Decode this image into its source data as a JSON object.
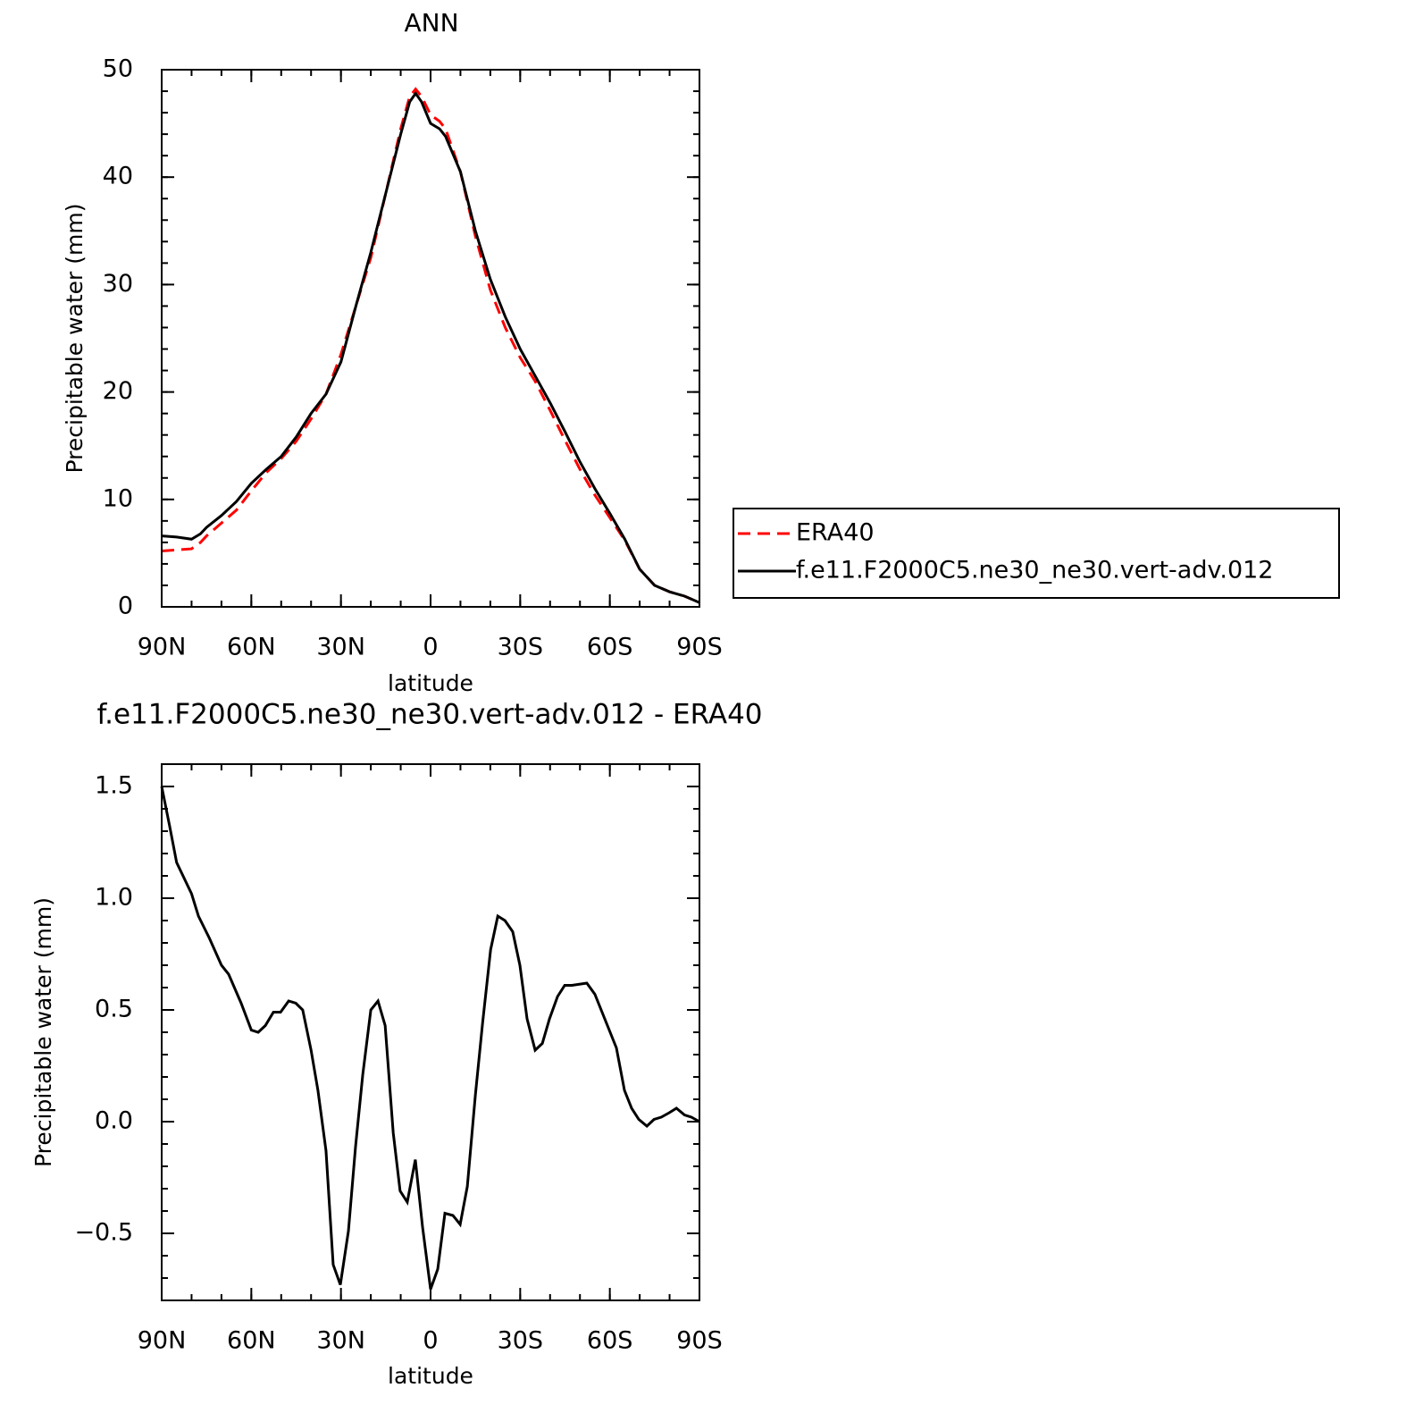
{
  "chart_data": [
    {
      "type": "line",
      "title": "ANN",
      "x_label": "latitude",
      "y_label": "Precipitable water (mm)",
      "xlim": [
        90,
        -90
      ],
      "xticks": [
        {
          "value": 90,
          "label": "90N"
        },
        {
          "value": 60,
          "label": "60N"
        },
        {
          "value": 30,
          "label": "30N"
        },
        0,
        {
          "value": -30,
          "label": "30S"
        },
        {
          "value": -60,
          "label": "60S"
        },
        {
          "value": -90,
          "label": "90S"
        }
      ],
      "ylim": [
        0,
        50
      ],
      "yticks": [
        0,
        10,
        20,
        30,
        40,
        50
      ],
      "grid": false,
      "legend": "right",
      "x": [
        90,
        85,
        80,
        77,
        75,
        70,
        65,
        60,
        55,
        50,
        45,
        40,
        35,
        30,
        25,
        20,
        15,
        10,
        7,
        5,
        3,
        0,
        -3,
        -5,
        -10,
        -15,
        -20,
        -25,
        -30,
        -35,
        -40,
        -45,
        -50,
        -55,
        -60,
        -65,
        -70,
        -75,
        -80,
        -85,
        -90
      ],
      "series": [
        {
          "name": "ERA40",
          "color": "#ff0000",
          "line_style": "dashed",
          "values": [
            5.2,
            5.3,
            5.4,
            6.0,
            6.6,
            7.8,
            9.0,
            10.8,
            12.5,
            13.8,
            15.4,
            17.5,
            19.8,
            23.5,
            28.0,
            32.5,
            38.5,
            44.5,
            47.5,
            48.2,
            47.5,
            45.8,
            45.2,
            44.5,
            40.5,
            34.5,
            29.5,
            26.0,
            23.2,
            21.0,
            18.3,
            15.5,
            12.8,
            10.4,
            8.3,
            6.2,
            3.5,
            2.0,
            1.4,
            1.0,
            0.4
          ]
        },
        {
          "name": "f.e11.F2000C5.ne30_ne30.vert-adv.012",
          "color": "#000000",
          "line_style": "solid",
          "values": [
            6.6,
            6.5,
            6.3,
            6.8,
            7.4,
            8.5,
            9.8,
            11.5,
            12.8,
            14.0,
            15.8,
            18.0,
            19.8,
            22.8,
            28.0,
            33.0,
            38.5,
            44.0,
            47.0,
            47.8,
            47.0,
            45.0,
            44.5,
            43.8,
            40.5,
            35.0,
            30.5,
            27.0,
            24.0,
            21.5,
            19.0,
            16.3,
            13.5,
            11.0,
            8.7,
            6.3,
            3.5,
            2.0,
            1.4,
            1.0,
            0.4
          ]
        }
      ]
    },
    {
      "type": "line",
      "title": "f.e11.F2000C5.ne30_ne30.vert-adv.012 - ERA40",
      "x_label": "latitude",
      "y_label": "Precipitable water (mm)",
      "xlim": [
        90,
        -90
      ],
      "xticks": [
        {
          "value": 90,
          "label": "90N"
        },
        {
          "value": 60,
          "label": "60N"
        },
        {
          "value": 30,
          "label": "30N"
        },
        0,
        {
          "value": -30,
          "label": "30S"
        },
        {
          "value": -60,
          "label": "60S"
        },
        {
          "value": -90,
          "label": "90S"
        }
      ],
      "ylim": [
        -0.8,
        1.6
      ],
      "yticks": [
        {
          "value": -0.5,
          "label": "−0.5"
        },
        {
          "value": 0,
          "label": "0.0"
        },
        0.5,
        {
          "value": 1,
          "label": "1.0"
        },
        1.5
      ],
      "grid": false,
      "x": [
        90,
        87.3,
        85,
        80,
        77.7,
        74,
        70,
        67.6,
        63.4,
        60,
        57.7,
        55.3,
        52.6,
        50.2,
        47.5,
        45.1,
        42.8,
        40,
        37.7,
        35,
        32.6,
        30.2,
        27.5,
        25.1,
        22.7,
        20,
        17.6,
        15.2,
        12.5,
        10.2,
        7.8,
        5.1,
        2.7,
        0,
        -2.4,
        -4.8,
        -7.5,
        -9.9,
        -12.3,
        -15,
        -17.4,
        -20.1,
        -22.5,
        -24.9,
        -27.5,
        -29.9,
        -32.3,
        -35,
        -37.4,
        -39.8,
        -42.5,
        -44.9,
        -47.3,
        -52.3,
        -55,
        -57.4,
        -59.8,
        -62.2,
        -64.9,
        -67.3,
        -69.7,
        -72.4,
        -74.8,
        -77.2,
        -79.9,
        -82.3,
        -85,
        -87.3,
        -90
      ],
      "series": [
        {
          "name": "f.e11.F2000C5.ne30_ne30.vert-adv.012 - ERA40",
          "color": "#000000",
          "line_style": "solid",
          "values": [
            1.5,
            1.32,
            1.16,
            1.02,
            0.92,
            0.82,
            0.7,
            0.66,
            0.53,
            0.41,
            0.4,
            0.43,
            0.49,
            0.49,
            0.54,
            0.53,
            0.5,
            0.32,
            0.14,
            -0.13,
            -0.64,
            -0.73,
            -0.49,
            -0.11,
            0.21,
            0.5,
            0.54,
            0.43,
            -0.05,
            -0.31,
            -0.36,
            -0.17,
            -0.47,
            -0.75,
            -0.66,
            -0.41,
            -0.42,
            -0.46,
            -0.29,
            0.12,
            0.44,
            0.77,
            0.92,
            0.9,
            0.85,
            0.7,
            0.46,
            0.32,
            0.35,
            0.46,
            0.56,
            0.61,
            0.61,
            0.62,
            0.57,
            0.49,
            0.41,
            0.33,
            0.14,
            0.06,
            0.01,
            -0.02,
            0.01,
            0.02,
            0.04,
            0.06,
            0.03,
            0.02,
            0.0
          ]
        }
      ]
    }
  ]
}
